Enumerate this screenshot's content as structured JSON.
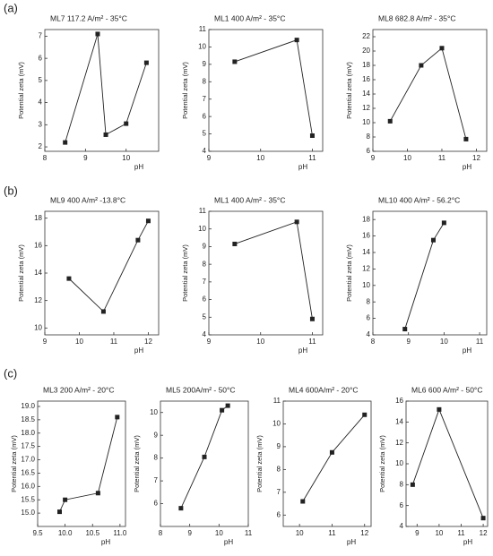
{
  "panel_labels": [
    "(a)",
    "(b)",
    "(c)"
  ],
  "chart_data": [
    {
      "type": "line",
      "title": "ML7 117.2 A/m² - 35°C",
      "x_label": "pH",
      "y_label": "Potential zeta (mV)",
      "color": "#222222",
      "x": [
        8.5,
        9.3,
        9.5,
        10,
        10.5
      ],
      "values": [
        2.2,
        7.1,
        2.55,
        3.05,
        5.8
      ],
      "xlim": [
        8,
        10.8
      ],
      "xticks": [
        8,
        9,
        10
      ],
      "ylim": [
        1.8,
        7.3
      ],
      "yticks": [
        2,
        3,
        4,
        5,
        6,
        7
      ]
    },
    {
      "type": "line",
      "title": "ML1 400 A/m² - 35°C",
      "x_label": "pH",
      "y_label": "Potential zeta (mV)",
      "color": "#222222",
      "x": [
        9.5,
        10.7,
        11
      ],
      "values": [
        9.15,
        10.4,
        4.9
      ],
      "xlim": [
        9,
        11.2
      ],
      "xticks": [
        9,
        10,
        11
      ],
      "ylim": [
        4,
        11
      ],
      "yticks": [
        4,
        5,
        6,
        7,
        8,
        9,
        10,
        11
      ]
    },
    {
      "type": "line",
      "title": "ML8 682.8 A/m² - 35°C",
      "x_label": "pH",
      "y_label": "Potential zeta (mV)",
      "color": "#222222",
      "x": [
        9.5,
        10.4,
        11,
        11.7
      ],
      "values": [
        10.2,
        18,
        20.4,
        7.7
      ],
      "xlim": [
        9,
        12.3
      ],
      "xticks": [
        9,
        10,
        11,
        12
      ],
      "ylim": [
        6,
        23
      ],
      "yticks": [
        6,
        8,
        10,
        12,
        14,
        16,
        18,
        20,
        22
      ]
    },
    {
      "type": "line",
      "title": "ML9 400 A/m² -13.8°C",
      "x_label": "pH",
      "y_label": "Potential zeta (mV)",
      "color": "#222222",
      "x": [
        9.7,
        10.7,
        11.7,
        12
      ],
      "values": [
        13.6,
        11.2,
        16.4,
        17.8
      ],
      "xlim": [
        9,
        12.3
      ],
      "xticks": [
        9,
        10,
        11,
        12
      ],
      "ylim": [
        9.5,
        18.5
      ],
      "yticks": [
        10,
        12,
        14,
        16,
        18
      ]
    },
    {
      "type": "line",
      "title": "ML1 400 A/m² - 35°C",
      "x_label": "pH",
      "y_label": "Potential zeta (mV)",
      "color": "#222222",
      "x": [
        9.5,
        10.7,
        11
      ],
      "values": [
        9.15,
        10.4,
        4.9
      ],
      "xlim": [
        9,
        11.2
      ],
      "xticks": [
        9,
        10,
        11
      ],
      "ylim": [
        4,
        11
      ],
      "yticks": [
        4,
        5,
        6,
        7,
        8,
        9,
        10,
        11
      ]
    },
    {
      "type": "line",
      "title": "ML10 400 A/m² - 56.2°C",
      "x_label": "pH",
      "y_label": "Potential zeta (mV)",
      "color": "#222222",
      "x": [
        8.9,
        9.7,
        10
      ],
      "values": [
        4.7,
        15.5,
        17.6
      ],
      "xlim": [
        8,
        11.2
      ],
      "xticks": [
        8,
        9,
        10,
        11
      ],
      "ylim": [
        4,
        19
      ],
      "yticks": [
        4,
        6,
        8,
        10,
        12,
        14,
        16,
        18
      ]
    },
    {
      "type": "line",
      "title": "ML3 200 A/m² - 20°C",
      "x_label": "pH",
      "y_label": "Potential zeta (mV)",
      "color": "#222222",
      "x": [
        9.9,
        10,
        10.6,
        10.95
      ],
      "values": [
        15.05,
        15.5,
        15.75,
        18.6
      ],
      "xlim": [
        9.5,
        11.1
      ],
      "xticks": [
        9.5,
        {
          "value": 10,
          "label": "10.0"
        },
        10.5,
        {
          "value": 11,
          "label": "11.0"
        }
      ],
      "ylim": [
        14.5,
        19.2
      ],
      "yticks": [
        {
          "value": 15,
          "label": "15.0"
        },
        15.5,
        {
          "value": 16,
          "label": "16.0"
        },
        16.5,
        {
          "value": 17,
          "label": "17.0"
        },
        17.5,
        {
          "value": 18,
          "label": "18.0"
        },
        18.5,
        {
          "value": 19,
          "label": "19.0"
        }
      ]
    },
    {
      "type": "line",
      "title": "ML5 200A/m² - 50°C",
      "x_label": "pH",
      "y_label": "Potential zeta (mV)",
      "color": "#222222",
      "x": [
        8.7,
        9.5,
        10.1,
        10.3
      ],
      "values": [
        5.8,
        8.05,
        10.1,
        10.3
      ],
      "xlim": [
        8,
        11
      ],
      "xticks": [
        8,
        9,
        10,
        11
      ],
      "ylim": [
        5,
        10.5
      ],
      "yticks": [
        6,
        7,
        8,
        9,
        10
      ]
    },
    {
      "type": "line",
      "title": "ML4 600A/m² - 20°C",
      "x_label": "pH",
      "y_label": "Potential zeta (mV)",
      "color": "#222222",
      "x": [
        10.1,
        11,
        12
      ],
      "values": [
        6.6,
        8.75,
        10.4
      ],
      "xlim": [
        9.5,
        12.2
      ],
      "xticks": [
        10,
        11,
        12
      ],
      "ylim": [
        5.5,
        11
      ],
      "yticks": [
        6,
        7,
        8,
        9,
        10,
        11
      ]
    },
    {
      "type": "line",
      "title": "ML6 600 A/m² - 50°C",
      "x_label": "pH",
      "y_label": "Potential zeta (mV)",
      "color": "#222222",
      "x": [
        8.8,
        10,
        12
      ],
      "values": [
        8,
        15.2,
        4.8
      ],
      "xlim": [
        8.5,
        12.2
      ],
      "xticks": [
        9,
        10,
        11,
        12
      ],
      "ylim": [
        4,
        16
      ],
      "yticks": [
        4,
        6,
        8,
        10,
        12,
        14,
        16
      ]
    }
  ]
}
